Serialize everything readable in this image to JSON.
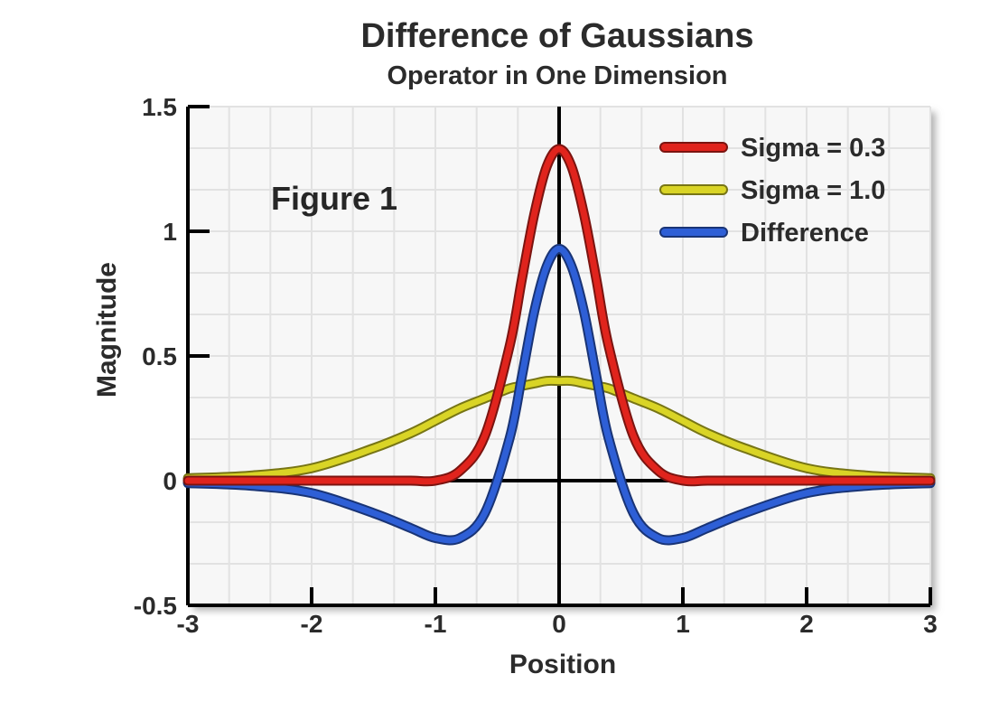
{
  "chart_data": {
    "type": "line",
    "title": "Difference of Gaussians",
    "subtitle": "Operator in One Dimension",
    "xlabel": "Position",
    "ylabel": "Magnitude",
    "xlim": [
      -3,
      3
    ],
    "ylim": [
      -0.5,
      1.5
    ],
    "x_ticks": [
      "-3",
      "-2",
      "-1",
      "0",
      "1",
      "2",
      "3"
    ],
    "y_ticks": [
      "-0.5",
      "0",
      "0.5",
      "1",
      "1.5"
    ],
    "grid": true,
    "legend_position": "top-right",
    "annotation": "Figure 1",
    "x": [
      -3,
      -2.5,
      -2,
      -1.5,
      -1.2,
      -1,
      -0.8,
      -0.6,
      -0.4,
      -0.3,
      -0.2,
      -0.1,
      0,
      0.1,
      0.2,
      0.3,
      0.4,
      0.6,
      0.8,
      1,
      1.2,
      1.5,
      2,
      2.5,
      3
    ],
    "series": [
      {
        "name": "Sigma = 0.3",
        "color": "#e0241d",
        "values": [
          0.0,
          0.0,
          0.0,
          0.0,
          0.0,
          0.0,
          0.04,
          0.18,
          0.54,
          0.81,
          1.07,
          1.26,
          1.33,
          1.26,
          1.07,
          0.81,
          0.54,
          0.18,
          0.04,
          0.0,
          0.0,
          0.0,
          0.0,
          0.0,
          0.0
        ]
      },
      {
        "name": "Sigma = 1.0",
        "color": "#d9d426",
        "values": [
          0.01,
          0.02,
          0.05,
          0.13,
          0.19,
          0.24,
          0.29,
          0.33,
          0.37,
          0.38,
          0.39,
          0.4,
          0.4,
          0.4,
          0.39,
          0.38,
          0.37,
          0.33,
          0.29,
          0.24,
          0.19,
          0.13,
          0.05,
          0.02,
          0.01
        ]
      },
      {
        "name": "Difference",
        "color": "#2e5fd6",
        "values": [
          -0.01,
          -0.02,
          -0.05,
          -0.13,
          -0.19,
          -0.23,
          -0.23,
          -0.13,
          0.17,
          0.42,
          0.68,
          0.86,
          0.93,
          0.86,
          0.68,
          0.42,
          0.17,
          -0.13,
          -0.23,
          -0.23,
          -0.19,
          -0.13,
          -0.05,
          -0.02,
          -0.01
        ]
      }
    ]
  }
}
